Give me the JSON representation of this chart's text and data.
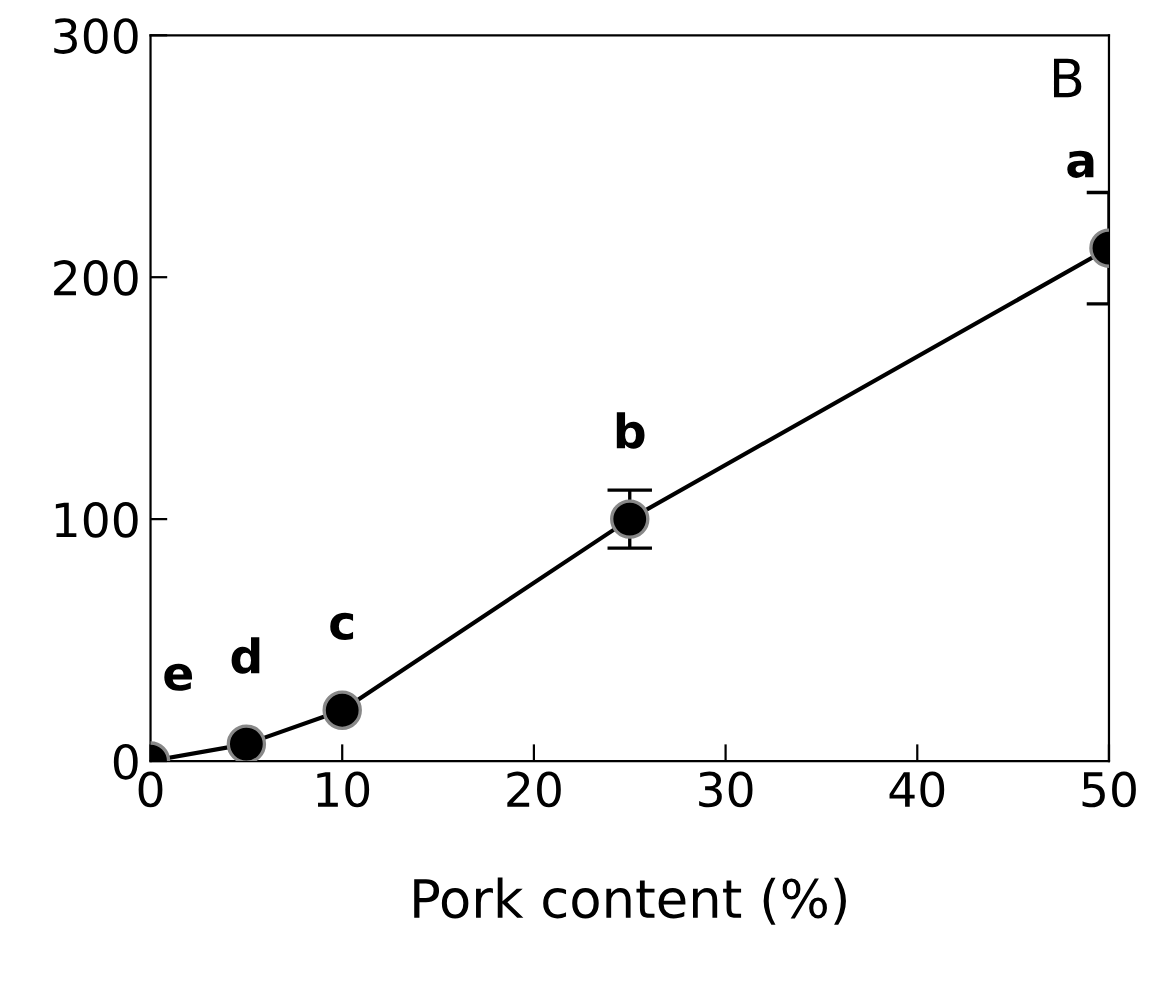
{
  "chart_data": {
    "type": "line",
    "xlabel": "Pork content (%)",
    "x": [
      0,
      5,
      10,
      25,
      50
    ],
    "series": [
      {
        "color": "#000000",
        "values": [
          0,
          7,
          21,
          100,
          212
        ],
        "errors": [
          null,
          null,
          null,
          12,
          23
        ]
      }
    ],
    "xlim": [
      0,
      50
    ],
    "ylim": [
      0,
      300
    ],
    "xticks": [
      0,
      10,
      20,
      30,
      40,
      50
    ],
    "yticks": [
      0,
      100,
      200,
      300
    ],
    "marker": "circle",
    "line_style": "solid",
    "grid": false,
    "legend": false,
    "annotations": [
      "B",
      {
        "text": "e",
        "x": 0,
        "y": 0
      },
      {
        "text": "d",
        "x": 5,
        "y": 7
      },
      {
        "text": "c",
        "x": 10,
        "y": 21
      },
      {
        "text": "b",
        "x": 25,
        "y": 100
      },
      {
        "text": "a",
        "x": 50,
        "y": 212
      }
    ]
  }
}
